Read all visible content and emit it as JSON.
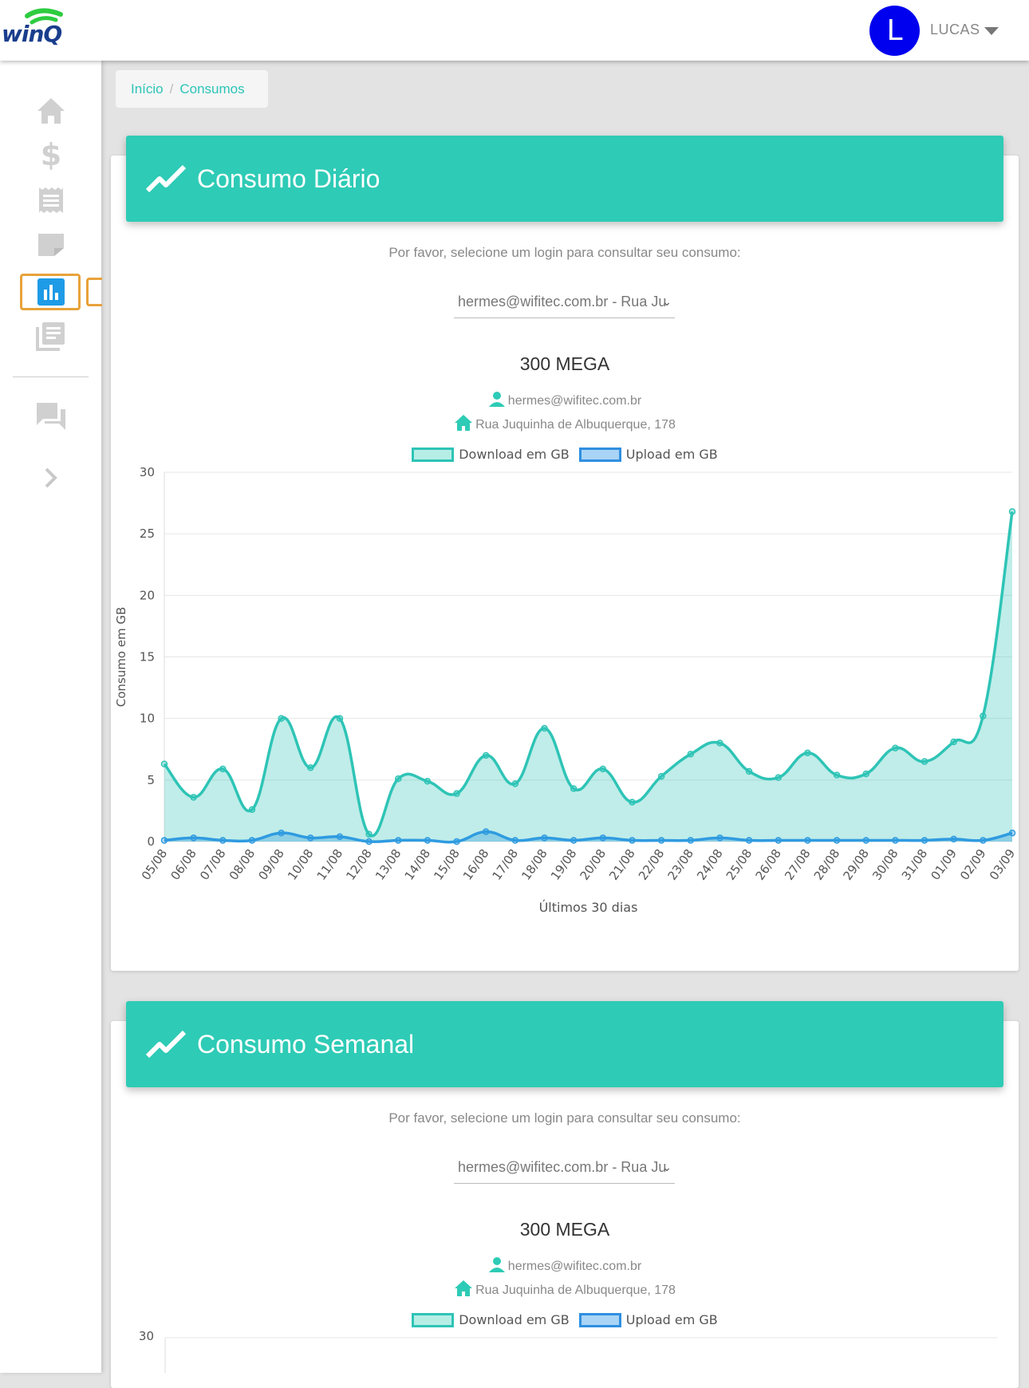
{
  "header": {
    "logo_text": "winQ",
    "avatar_letter": "L",
    "username": "LUCAS"
  },
  "sidebar": {
    "items": [
      "home-icon",
      "dollar-icon",
      "receipt-icon",
      "note-icon",
      "bar-chart-icon",
      "documents-icon",
      "chat-icon",
      "chevron-right-icon"
    ],
    "active": "bar-chart-icon"
  },
  "breadcrumb": {
    "home": "Início",
    "separator": "/",
    "current": "Consumos"
  },
  "colors": {
    "accent": "#2ecbb6",
    "download": "#2ec4b6",
    "upload": "#2f9be0",
    "avatar": "#0000ee"
  },
  "daily": {
    "title": "Consumo Diário",
    "prompt": "Por favor, selecione um login para consultar seu consumo:",
    "select_value": "hermes@wifitec.com.br - Rua Ju",
    "plan": "300 MEGA",
    "login": "hermes@wifitec.com.br",
    "address": "Rua Juquinha de Albuquerque, 178",
    "legend_download": "Download em GB",
    "legend_upload": "Upload em GB"
  },
  "weekly": {
    "title": "Consumo Semanal",
    "prompt": "Por favor, selecione um login para consultar seu consumo:",
    "select_value": "hermes@wifitec.com.br - Rua Ju",
    "plan": "300 MEGA",
    "login": "hermes@wifitec.com.br",
    "address": "Rua Juquinha de Albuquerque, 178",
    "legend_download": "Download em GB",
    "legend_upload": "Upload em GB",
    "y_top_tick": "30"
  },
  "chart_data": {
    "type": "area",
    "xlabel": "Últimos 30 dias",
    "ylabel": "Consumo em GB",
    "ylim": [
      0,
      30
    ],
    "yticks": [
      "0",
      "5",
      "10",
      "15",
      "20",
      "25",
      "30"
    ],
    "categories": [
      "05/08",
      "06/08",
      "07/08",
      "08/08",
      "09/08",
      "10/08",
      "11/08",
      "12/08",
      "13/08",
      "14/08",
      "15/08",
      "16/08",
      "17/08",
      "18/08",
      "19/08",
      "20/08",
      "21/08",
      "22/08",
      "23/08",
      "24/08",
      "25/08",
      "26/08",
      "27/08",
      "28/08",
      "29/08",
      "30/08",
      "31/08",
      "01/09",
      "02/09",
      "03/09"
    ],
    "series": [
      {
        "name": "Download em GB",
        "values": [
          6.3,
          3.6,
          5.9,
          2.6,
          10.0,
          6.0,
          10.0,
          0.6,
          5.1,
          4.9,
          3.9,
          7.0,
          4.7,
          9.2,
          4.3,
          5.9,
          3.2,
          5.3,
          7.1,
          8.0,
          5.7,
          5.2,
          7.2,
          5.4,
          5.5,
          7.6,
          6.5,
          8.1,
          10.2,
          26.8
        ]
      },
      {
        "name": "Upload em GB",
        "values": [
          0.1,
          0.3,
          0.1,
          0.1,
          0.7,
          0.3,
          0.4,
          0.0,
          0.1,
          0.1,
          0.0,
          0.8,
          0.1,
          0.3,
          0.1,
          0.3,
          0.1,
          0.1,
          0.1,
          0.3,
          0.1,
          0.1,
          0.1,
          0.1,
          0.1,
          0.1,
          0.1,
          0.2,
          0.1,
          0.7
        ]
      }
    ],
    "grid": true,
    "legend_position": "top"
  }
}
